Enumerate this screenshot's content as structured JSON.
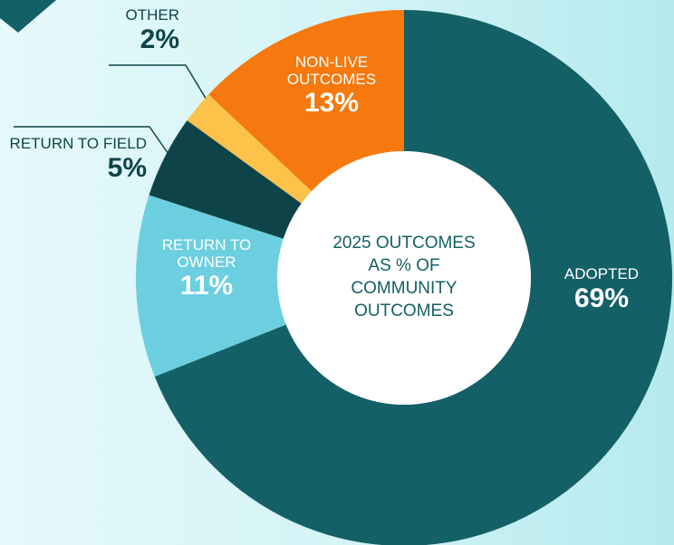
{
  "chart_data": {
    "type": "donut",
    "center_label": "2025 OUTCOMES AS % OF COMMUNITY OUTCOMES",
    "categories": [
      "ADOPTED",
      "RETURN TO OWNER",
      "RETURN TO FIELD",
      "OTHER",
      "NON-LIVE OUTCOMES"
    ],
    "values": [
      69,
      11,
      5,
      2,
      13
    ],
    "value_labels": [
      "69%",
      "11%",
      "5%",
      "2%",
      "13%"
    ],
    "colors": [
      "#136066",
      "#6ccfe0",
      "#0e4448",
      "#fcc24a",
      "#f5790f"
    ]
  }
}
